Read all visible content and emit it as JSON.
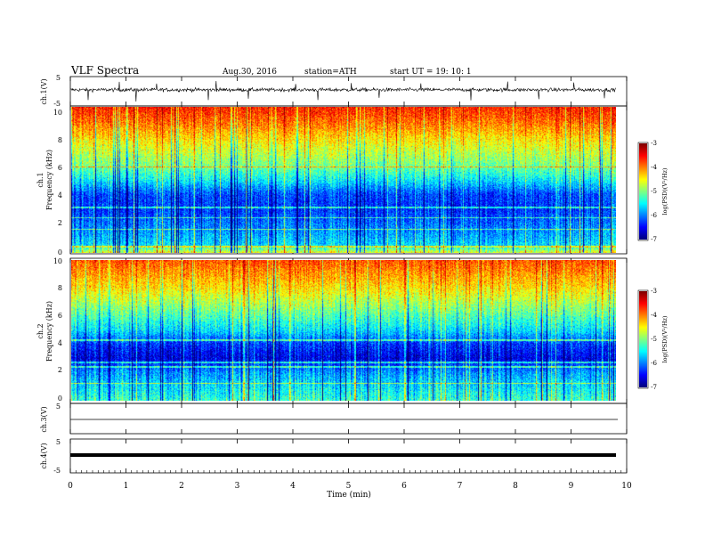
{
  "header": {
    "title": "VLF  Spectra",
    "date": "Aug.30, 2016",
    "station": "station=ATH",
    "start": "start  UT =   19: 10: 1"
  },
  "colors": {
    "colormap": [
      "#00007f",
      "#0000ff",
      "#0080ff",
      "#00ffff",
      "#80ff80",
      "#ffff00",
      "#ff8000",
      "#ff0000",
      "#7f0000"
    ],
    "trace": "#000000",
    "axis": "#000000"
  },
  "chart_data": [
    {
      "type": "line",
      "name": "ch1-waveform",
      "ylabel": "ch.1(V)",
      "ylim": [
        -5,
        5
      ],
      "yticks": [
        "5",
        "-5"
      ],
      "x_range": [
        0,
        9.8
      ],
      "baseline_V": 0.5,
      "noise_amplitude_V": 0.6,
      "spikes": [
        {
          "t": 0.32,
          "v": -3.0
        },
        {
          "t": 0.88,
          "v": 3.2
        },
        {
          "t": 1.18,
          "v": -3.5
        },
        {
          "t": 1.55,
          "v": 2.6
        },
        {
          "t": 2.48,
          "v": -3.0
        },
        {
          "t": 2.62,
          "v": 3.5
        },
        {
          "t": 3.2,
          "v": -2.5
        },
        {
          "t": 4.05,
          "v": 2.5
        },
        {
          "t": 4.45,
          "v": -3.0
        },
        {
          "t": 5.05,
          "v": 2.8
        },
        {
          "t": 5.55,
          "v": -2.2
        },
        {
          "t": 6.3,
          "v": 2.7
        },
        {
          "t": 7.2,
          "v": -3.1
        },
        {
          "t": 7.86,
          "v": 3.3
        },
        {
          "t": 8.42,
          "v": -2.7
        },
        {
          "t": 9.05,
          "v": 3.0
        },
        {
          "t": 9.6,
          "v": -2.4
        }
      ]
    },
    {
      "type": "heatmap",
      "name": "ch1-spectrogram",
      "ylabel": "Frequency  (kHz)",
      "channel_label": "ch.1",
      "ylim": [
        0,
        10
      ],
      "yticks": [
        "0",
        "2",
        "4",
        "6",
        "8",
        "10"
      ],
      "x_range": [
        0,
        9.8
      ],
      "value_range": [
        -7,
        -3
      ],
      "mean_logPSD_profile": [
        {
          "f": 0.0,
          "v": -4.6
        },
        {
          "f": 0.5,
          "v": -5.6
        },
        {
          "f": 1.5,
          "v": -5.9
        },
        {
          "f": 3.0,
          "v": -6.3
        },
        {
          "f": 4.0,
          "v": -6.2
        },
        {
          "f": 5.0,
          "v": -5.5
        },
        {
          "f": 6.0,
          "v": -5.0
        },
        {
          "f": 7.5,
          "v": -4.5
        },
        {
          "f": 9.0,
          "v": -3.9
        },
        {
          "f": 10.0,
          "v": -3.6
        }
      ],
      "tonal_lines_kHz": [
        0.4,
        1.6,
        2.4,
        3.1,
        5.9
      ]
    },
    {
      "type": "heatmap",
      "name": "ch2-spectrogram",
      "ylabel": "Frequency  (kHz)",
      "channel_label": "ch.2",
      "ylim": [
        0,
        10
      ],
      "yticks": [
        "0",
        "2",
        "4",
        "6",
        "8",
        "10"
      ],
      "x_range": [
        0,
        9.8
      ],
      "value_range": [
        -7,
        -3
      ],
      "mean_logPSD_profile": [
        {
          "f": 0.0,
          "v": -5.3
        },
        {
          "f": 1.0,
          "v": -5.6
        },
        {
          "f": 2.0,
          "v": -5.9
        },
        {
          "f": 3.0,
          "v": -6.6
        },
        {
          "f": 4.0,
          "v": -6.3
        },
        {
          "f": 5.0,
          "v": -5.6
        },
        {
          "f": 6.5,
          "v": -5.0
        },
        {
          "f": 8.0,
          "v": -4.4
        },
        {
          "f": 10.0,
          "v": -3.8
        }
      ],
      "tonal_lines_kHz": [
        1.2,
        2.4,
        2.7,
        4.3
      ]
    },
    {
      "type": "line",
      "name": "ch3-waveform",
      "ylabel": "ch.3(V)",
      "ylim": [
        -5,
        5
      ],
      "yticks": [
        "5",
        "-5"
      ],
      "x_range": [
        0,
        9.8
      ],
      "baseline_V": 0
    },
    {
      "type": "line",
      "name": "ch4-waveform",
      "ylabel": "ch.4(V)",
      "ylim": [
        -5,
        5
      ],
      "yticks": [
        "5",
        "-5"
      ],
      "x_range": [
        0,
        9.8
      ],
      "baseline_V": 0
    }
  ],
  "colorbar": {
    "label": "log(PSD)(V²/Hz)",
    "ticks": [
      "-3",
      "-4",
      "-5",
      "-6",
      "-7"
    ],
    "range": [
      -7,
      -3
    ]
  },
  "xaxis": {
    "label": "Time  (min)",
    "range": [
      0,
      10
    ],
    "ticks": [
      "0",
      "1",
      "2",
      "3",
      "4",
      "5",
      "6",
      "7",
      "8",
      "9",
      "10"
    ]
  }
}
